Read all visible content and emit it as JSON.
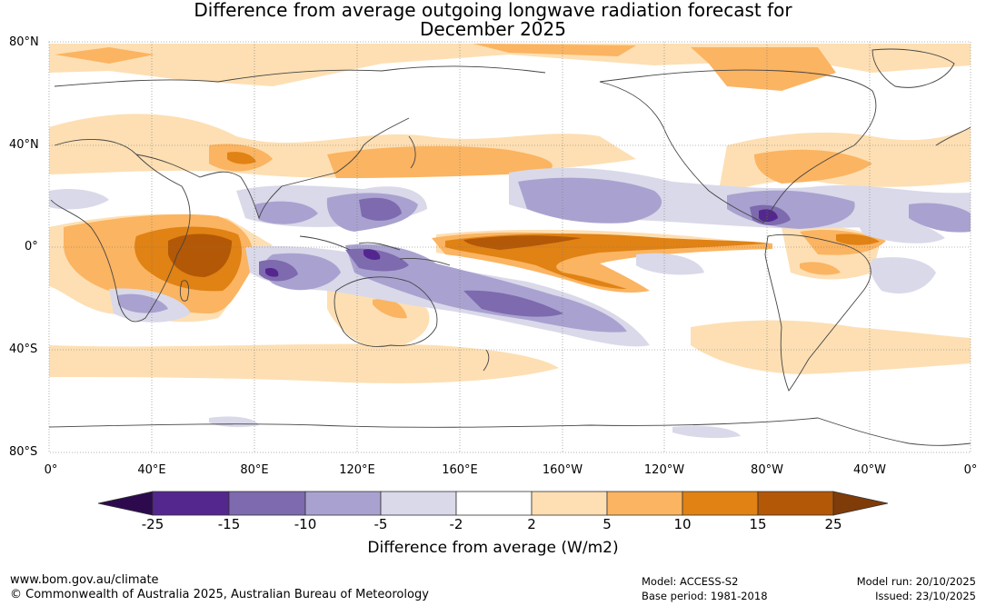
{
  "title": {
    "line1": "Difference from average outgoing longwave radiation forecast for",
    "line2": "December 2025"
  },
  "map": {
    "lat_labels": [
      "80°N",
      "40°N",
      "0°",
      "40°S",
      "80°S"
    ],
    "lon_labels": [
      "0°",
      "40°E",
      "80°E",
      "120°E",
      "160°E",
      "160°W",
      "120°W",
      "80°W",
      "40°W",
      "0°"
    ]
  },
  "colorbar": {
    "ticks": [
      "-25",
      "-15",
      "-10",
      "-5",
      "-2",
      "2",
      "5",
      "10",
      "15",
      "25"
    ],
    "label": "Difference from average (W/m2)",
    "colors": {
      "below_min": "#2d0a4e",
      "n25_15": "#54278f",
      "n15_10": "#7e6aae",
      "n10_5": "#a9a2d0",
      "n5_2": "#d9d9ea",
      "n2_2": "#ffffff",
      "p2_5": "#fddfb3",
      "p5_10": "#fbb461",
      "p10_15": "#e08214",
      "p15_25": "#b35806",
      "above_max": "#7f3b08"
    }
  },
  "footer": {
    "url": "www.bom.gov.au/climate",
    "copyright": "© Commonwealth of Australia 2025, Australian Bureau of Meteorology",
    "model": "Model: ACCESS-S2",
    "base_period": "Base period: 1981-2018",
    "model_run": "Model run: 20/10/2025",
    "issued": "Issued: 23/10/2025"
  }
}
